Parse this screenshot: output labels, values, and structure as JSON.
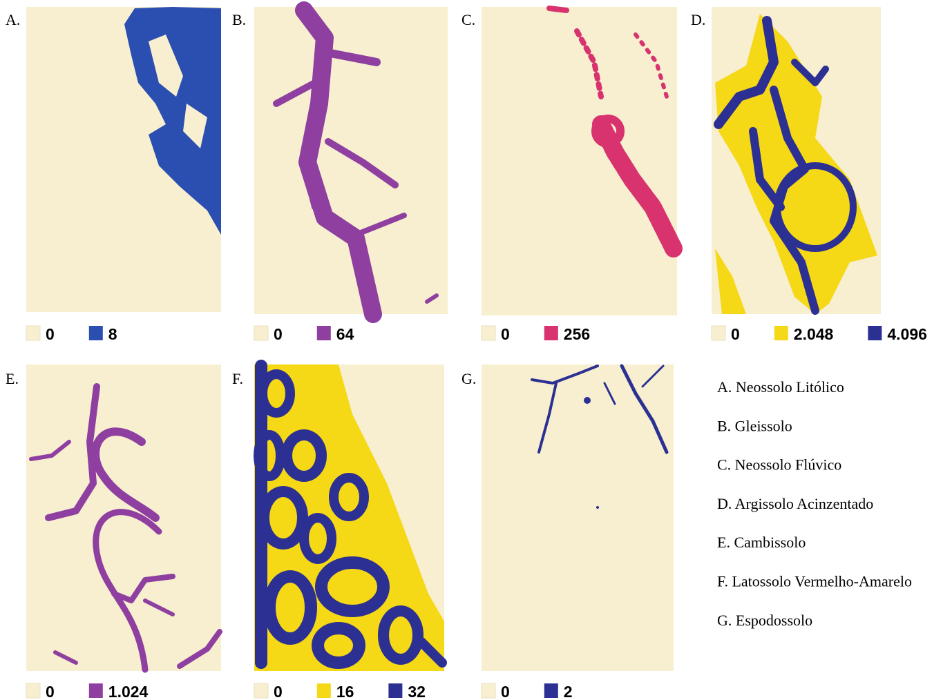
{
  "panels": [
    {
      "letter": "A.",
      "legend": [
        {
          "label": "0",
          "color": "#f7efd0"
        },
        {
          "label": "8",
          "color": "#2b4fb0"
        }
      ]
    },
    {
      "letter": "B.",
      "legend": [
        {
          "label": "0",
          "color": "#f7efd0"
        },
        {
          "label": "64",
          "color": "#8e3fa0"
        }
      ]
    },
    {
      "letter": "C.",
      "legend": [
        {
          "label": "0",
          "color": "#f7efd0"
        },
        {
          "label": "256",
          "color": "#d8336f"
        }
      ]
    },
    {
      "letter": "D.",
      "legend": [
        {
          "label": "0",
          "color": "#f7efd0"
        },
        {
          "label": "2.048",
          "color": "#f5d816"
        },
        {
          "label": "4.096",
          "color": "#2c3092"
        }
      ]
    },
    {
      "letter": "E.",
      "legend": [
        {
          "label": "0",
          "color": "#f7efd0"
        },
        {
          "label": "1.024",
          "color": "#8e3fa0"
        }
      ]
    },
    {
      "letter": "F.",
      "legend": [
        {
          "label": "0",
          "color": "#f7efd0"
        },
        {
          "label": "16",
          "color": "#f5d816"
        },
        {
          "label": "32",
          "color": "#2c3092"
        }
      ]
    },
    {
      "letter": "G.",
      "legend": [
        {
          "label": "0",
          "color": "#f7efd0"
        },
        {
          "label": "2",
          "color": "#2c3092"
        }
      ]
    }
  ],
  "key": [
    "A. Neossolo Litólico",
    "B. Gleissolo",
    "C. Neossolo Flúvico",
    "D. Argissolo Acinzentado",
    "E. Cambissolo",
    "F. Latossolo Vermelho-Amarelo",
    "G. Espodossolo"
  ]
}
